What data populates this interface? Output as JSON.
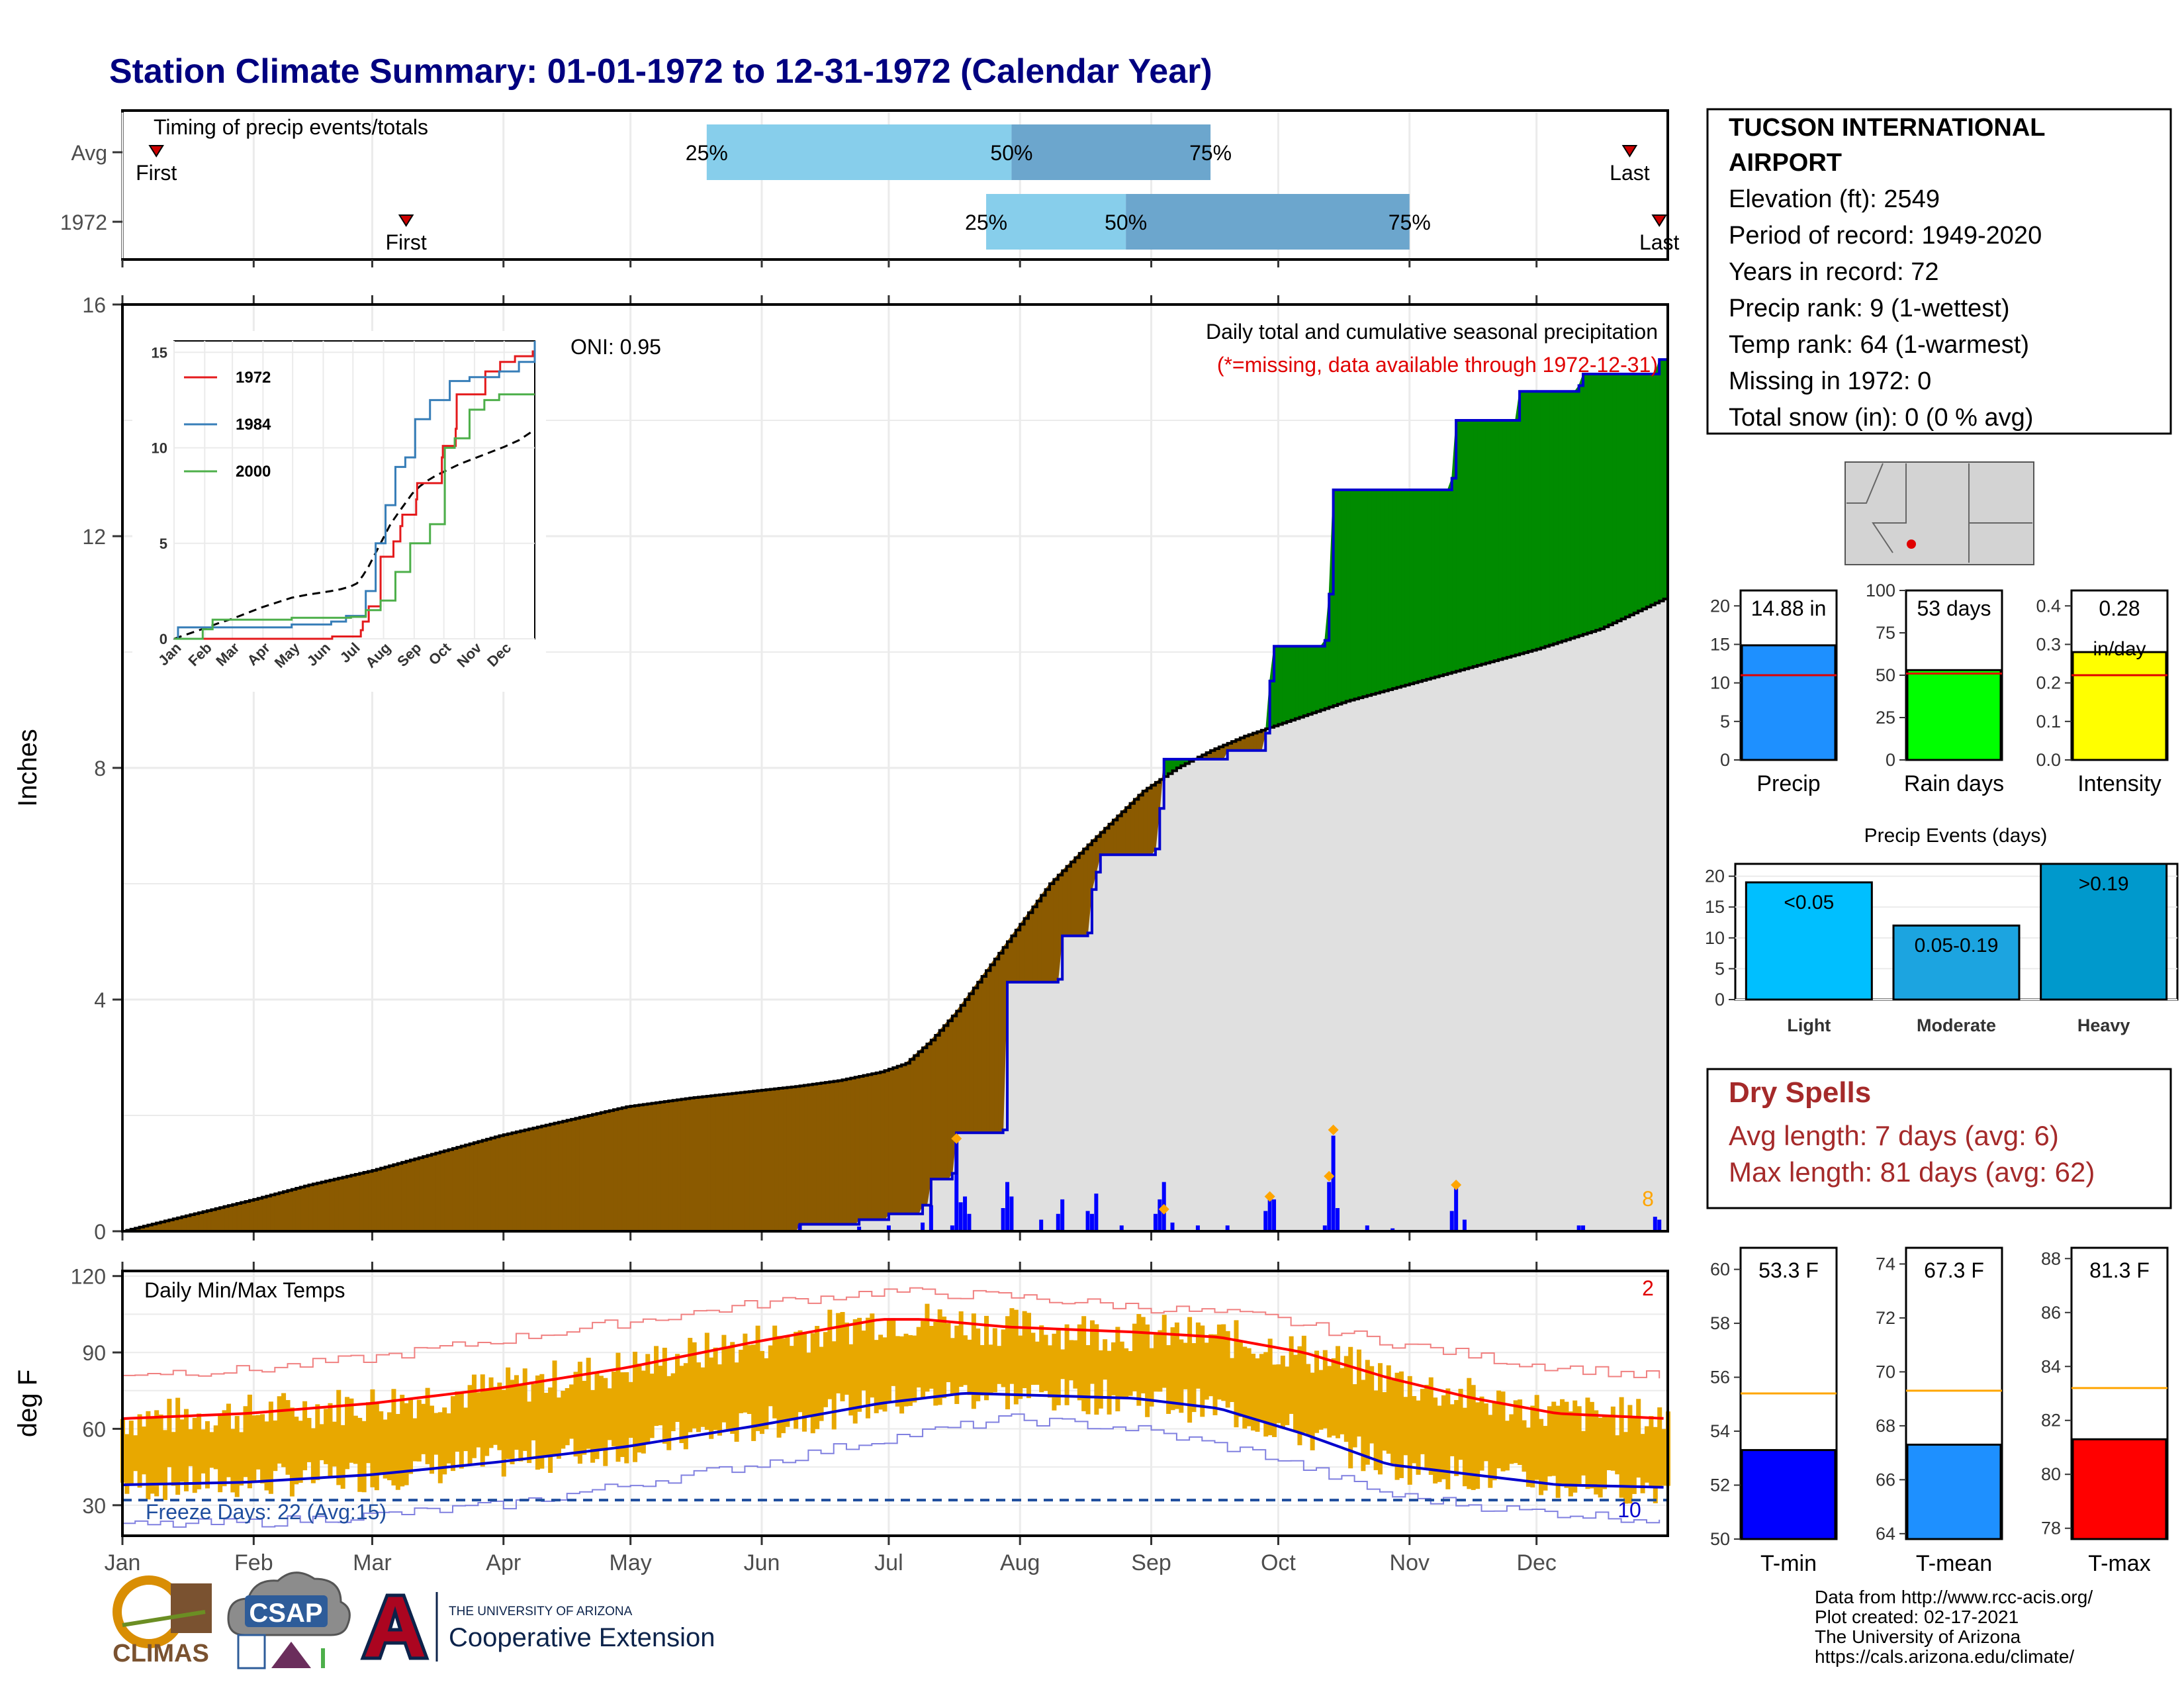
{
  "title": "Station Climate Summary: 01-01-1972 to 12-31-1972 (Calendar Year)",
  "months": [
    "Jan",
    "Feb",
    "Mar",
    "Apr",
    "May",
    "Jun",
    "Jul",
    "Aug",
    "Sep",
    "Oct",
    "Nov",
    "Dec"
  ],
  "timing": {
    "label": "Timing of precip events/totals",
    "rows": [
      {
        "label": "Avg",
        "first_label": "First",
        "first_doy": 9,
        "last_label": "Last",
        "last_doy": 357,
        "p25_label": "25%",
        "p25_doy": 139,
        "p50_label": "50%",
        "p50_doy": 211,
        "p75_label": "75%",
        "p75_doy": 258
      },
      {
        "label": "1972",
        "first_label": "First",
        "first_doy": 68,
        "last_label": "Last",
        "last_doy": 364,
        "p25_label": "25%",
        "p25_doy": 205,
        "p50_label": "50%",
        "p50_doy": 238,
        "p75_label": "75%",
        "p75_doy": 305
      }
    ],
    "colors": {
      "light": "#87CEEB",
      "dark": "#6CA6CD",
      "marker": "#CC0000"
    }
  },
  "info": {
    "station": "TUCSON INTERNATIONAL AIRPORT",
    "station_line1": "TUCSON INTERNATIONAL",
    "station_line2": "AIRPORT",
    "lines": [
      "Elevation (ft): 2549",
      "Period of record: 1949-2020",
      "Years in record: 72",
      "Precip rank: 9 (1-wettest)",
      "Temp rank: 64 (1-warmest)",
      "Missing in 1972: 0",
      "Total snow (in): 0 (0 % avg)"
    ]
  },
  "precip": {
    "ylabel": "Inches",
    "heading": "Daily total and cumulative seasonal precipitation",
    "missing_note": "(*=missing, data available through 1972-12-31)",
    "oni": "ONI: 0.95",
    "corner_count": "8",
    "yticks": [
      0,
      4,
      8,
      12,
      16
    ],
    "ylim": [
      0,
      16
    ],
    "avg_cum": [
      [
        1,
        0
      ],
      [
        15,
        0.25
      ],
      [
        32,
        0.55
      ],
      [
        45,
        0.8
      ],
      [
        60,
        1.05
      ],
      [
        75,
        1.35
      ],
      [
        90,
        1.65
      ],
      [
        105,
        1.9
      ],
      [
        120,
        2.15
      ],
      [
        135,
        2.3
      ],
      [
        150,
        2.42
      ],
      [
        160,
        2.5
      ],
      [
        170,
        2.6
      ],
      [
        180,
        2.75
      ],
      [
        186,
        2.9
      ],
      [
        192,
        3.3
      ],
      [
        198,
        3.8
      ],
      [
        205,
        4.5
      ],
      [
        213,
        5.3
      ],
      [
        220,
        6.0
      ],
      [
        228,
        6.6
      ],
      [
        235,
        7.1
      ],
      [
        242,
        7.6
      ],
      [
        250,
        8.0
      ],
      [
        258,
        8.3
      ],
      [
        266,
        8.55
      ],
      [
        274,
        8.75
      ],
      [
        282,
        8.95
      ],
      [
        290,
        9.15
      ],
      [
        305,
        9.45
      ],
      [
        320,
        9.75
      ],
      [
        335,
        10.05
      ],
      [
        350,
        10.4
      ],
      [
        366,
        10.95
      ]
    ],
    "cum_1972": [
      [
        1,
        0
      ],
      [
        160,
        0
      ],
      [
        161,
        0.12
      ],
      [
        175,
        0.2
      ],
      [
        182,
        0.3
      ],
      [
        190,
        0.45
      ],
      [
        192,
        0.9
      ],
      [
        197,
        1.0
      ],
      [
        198,
        1.7
      ],
      [
        209,
        1.75
      ],
      [
        210,
        4.3
      ],
      [
        222,
        4.35
      ],
      [
        223,
        5.1
      ],
      [
        229,
        5.15
      ],
      [
        230,
        5.9
      ],
      [
        231,
        6.2
      ],
      [
        232,
        6.5
      ],
      [
        245,
        6.6
      ],
      [
        246,
        7.3
      ],
      [
        247,
        8.15
      ],
      [
        262,
        8.3
      ],
      [
        271,
        8.6
      ],
      [
        272,
        9.5
      ],
      [
        273,
        10.1
      ],
      [
        285,
        10.2
      ],
      [
        286,
        11.0
      ],
      [
        287,
        12.8
      ],
      [
        315,
        13.0
      ],
      [
        316,
        14.0
      ],
      [
        331,
        14.5
      ],
      [
        345,
        14.6
      ],
      [
        346,
        14.8
      ],
      [
        363,
        14.8
      ],
      [
        364,
        15.05
      ],
      [
        366,
        15.05
      ]
    ],
    "daily_1972": [
      [
        161,
        0.12
      ],
      [
        175,
        0.08
      ],
      [
        182,
        0.1
      ],
      [
        190,
        0.15
      ],
      [
        192,
        0.45
      ],
      [
        197,
        0.1
      ],
      [
        198,
        1.55
      ],
      [
        199,
        0.5
      ],
      [
        200,
        0.6
      ],
      [
        201,
        0.3
      ],
      [
        209,
        0.4
      ],
      [
        210,
        0.85
      ],
      [
        211,
        0.6
      ],
      [
        218,
        0.2
      ],
      [
        222,
        0.3
      ],
      [
        223,
        0.55
      ],
      [
        229,
        0.35
      ],
      [
        230,
        0.3
      ],
      [
        231,
        0.65
      ],
      [
        237,
        0.1
      ],
      [
        245,
        0.3
      ],
      [
        246,
        0.55
      ],
      [
        247,
        0.85
      ],
      [
        249,
        0.15
      ],
      [
        255,
        0.1
      ],
      [
        262,
        0.1
      ],
      [
        271,
        0.35
      ],
      [
        272,
        0.6
      ],
      [
        273,
        0.55
      ],
      [
        285,
        0.1
      ],
      [
        286,
        0.85
      ],
      [
        287,
        1.65
      ],
      [
        288,
        0.4
      ],
      [
        295,
        0.1
      ],
      [
        301,
        0.05
      ],
      [
        315,
        0.35
      ],
      [
        316,
        0.8
      ],
      [
        318,
        0.2
      ],
      [
        345,
        0.1
      ],
      [
        346,
        0.1
      ],
      [
        363,
        0.25
      ],
      [
        364,
        0.2
      ]
    ],
    "orange_marks": [
      [
        198,
        1.6
      ],
      [
        247,
        0.38
      ],
      [
        272,
        0.6
      ],
      [
        286,
        0.95
      ],
      [
        287,
        1.75
      ],
      [
        316,
        0.8
      ]
    ],
    "colors": {
      "above": "#008B00",
      "below": "#8B5A00",
      "avg_fill": "#E0E0E0",
      "cum_line": "#0000CD",
      "daily": "#0000FF"
    }
  },
  "inset": {
    "yticks": [
      0,
      5,
      10,
      15
    ],
    "series": [
      {
        "name": "1972",
        "color": "#E41A1C",
        "points": [
          [
            1,
            0
          ],
          [
            160,
            0
          ],
          [
            161,
            0.12
          ],
          [
            190,
            0.45
          ],
          [
            192,
            0.9
          ],
          [
            198,
            1.7
          ],
          [
            210,
            4.3
          ],
          [
            223,
            5.1
          ],
          [
            230,
            5.9
          ],
          [
            232,
            6.5
          ],
          [
            246,
            7.3
          ],
          [
            247,
            8.15
          ],
          [
            272,
            9.5
          ],
          [
            273,
            10.1
          ],
          [
            286,
            11.0
          ],
          [
            287,
            12.8
          ],
          [
            316,
            14.0
          ],
          [
            331,
            14.5
          ],
          [
            346,
            14.8
          ],
          [
            364,
            15.05
          ],
          [
            366,
            15.05
          ]
        ]
      },
      {
        "name": "1984",
        "color": "#377EB8",
        "points": [
          [
            1,
            0
          ],
          [
            5,
            0.6
          ],
          [
            60,
            0.6
          ],
          [
            120,
            0.75
          ],
          [
            160,
            0.9
          ],
          [
            175,
            1.2
          ],
          [
            195,
            2.5
          ],
          [
            205,
            5.0
          ],
          [
            215,
            7.0
          ],
          [
            225,
            9.0
          ],
          [
            235,
            9.5
          ],
          [
            245,
            11.5
          ],
          [
            260,
            12.5
          ],
          [
            280,
            13.5
          ],
          [
            300,
            13.7
          ],
          [
            330,
            14.0
          ],
          [
            350,
            14.5
          ],
          [
            366,
            15.6
          ]
        ]
      },
      {
        "name": "2000",
        "color": "#4DAF4A",
        "points": [
          [
            1,
            0
          ],
          [
            30,
            0.5
          ],
          [
            40,
            1.0
          ],
          [
            120,
            1.1
          ],
          [
            180,
            1.15
          ],
          [
            195,
            1.5
          ],
          [
            210,
            2.0
          ],
          [
            225,
            3.5
          ],
          [
            240,
            5.0
          ],
          [
            260,
            6.0
          ],
          [
            275,
            10.0
          ],
          [
            285,
            10.5
          ],
          [
            300,
            12.0
          ],
          [
            315,
            12.5
          ],
          [
            330,
            12.8
          ],
          [
            366,
            12.8
          ]
        ]
      }
    ],
    "avg_color": "#000000"
  },
  "bars_precip": {
    "label": "Precip",
    "value_text": "14.88 in",
    "value": 14.88,
    "avg": 11.0,
    "yticks": [
      0,
      5,
      10,
      15,
      20
    ],
    "ymax": 22,
    "color": "#1E90FF"
  },
  "bars_days": {
    "label": "Rain days",
    "value_text": "53 days",
    "value": 53,
    "avg": 51,
    "yticks": [
      0,
      25,
      50,
      75,
      100
    ],
    "ymax": 100,
    "color": "#00FF00"
  },
  "bars_intensity": {
    "label": "Intensity",
    "value_text": "0.28",
    "unit_text": "in/day",
    "value": 0.28,
    "avg": 0.22,
    "yticks": [
      0.0,
      0.1,
      0.2,
      0.3,
      0.4
    ],
    "ymax": 0.44,
    "color": "#FFFF00"
  },
  "events": {
    "title": "Precip Events (days)",
    "yticks": [
      0,
      5,
      10,
      15,
      20
    ],
    "ymax": 22,
    "categories": [
      "Light",
      "Moderate",
      "Heavy"
    ],
    "bin_labels": [
      "<0.05",
      "0.05-0.19",
      ">0.19"
    ],
    "values": [
      19,
      12,
      22
    ],
    "colors": [
      "#00BFFF",
      "#1CA4E0",
      "#0099CC"
    ]
  },
  "dry": {
    "title": "Dry Spells",
    "avg_line": "Avg length: 7 days (avg: 6)",
    "max_line": "Max length: 81 days (avg: 62)",
    "color": "#A52A2A"
  },
  "temps": {
    "title": "Daily Min/Max Temps",
    "ylabel": "deg F",
    "yticks": [
      30,
      60,
      90,
      120
    ],
    "ylim": [
      18,
      122
    ],
    "freeze_label": "Freeze Days: 22 (Avg:15)",
    "freeze_temp": 32,
    "corner_hot": "2",
    "corner_cold": "10",
    "tmax_avg": [
      [
        1,
        64
      ],
      [
        30,
        66
      ],
      [
        60,
        70
      ],
      [
        90,
        76
      ],
      [
        120,
        84
      ],
      [
        150,
        94
      ],
      [
        180,
        103
      ],
      [
        190,
        103
      ],
      [
        210,
        100
      ],
      [
        240,
        98
      ],
      [
        260,
        96
      ],
      [
        280,
        90
      ],
      [
        300,
        80
      ],
      [
        320,
        72
      ],
      [
        340,
        66
      ],
      [
        366,
        64
      ]
    ],
    "tmin_avg": [
      [
        1,
        38
      ],
      [
        30,
        39
      ],
      [
        60,
        42
      ],
      [
        90,
        47
      ],
      [
        120,
        53
      ],
      [
        150,
        61
      ],
      [
        180,
        70
      ],
      [
        200,
        74
      ],
      [
        220,
        73
      ],
      [
        240,
        72
      ],
      [
        260,
        68
      ],
      [
        280,
        58
      ],
      [
        300,
        46
      ],
      [
        320,
        42
      ],
      [
        340,
        38
      ],
      [
        366,
        37
      ]
    ],
    "tmax_rec": [
      [
        1,
        82
      ],
      [
        30,
        83
      ],
      [
        60,
        88
      ],
      [
        90,
        95
      ],
      [
        120,
        102
      ],
      [
        150,
        109
      ],
      [
        180,
        114
      ],
      [
        210,
        112
      ],
      [
        240,
        108
      ],
      [
        270,
        104
      ],
      [
        300,
        94
      ],
      [
        330,
        86
      ],
      [
        366,
        80
      ]
    ],
    "tmin_rec": [
      [
        1,
        22
      ],
      [
        30,
        23
      ],
      [
        60,
        26
      ],
      [
        90,
        30
      ],
      [
        120,
        38
      ],
      [
        150,
        46
      ],
      [
        180,
        56
      ],
      [
        210,
        64
      ],
      [
        240,
        60
      ],
      [
        270,
        50
      ],
      [
        300,
        34
      ],
      [
        330,
        28
      ],
      [
        366,
        24
      ]
    ],
    "colors": {
      "range": "#E8A800",
      "avg_max": "#FF0000",
      "avg_min": "#0000CD",
      "rec_max": "#F08080",
      "rec_min": "#8080E0",
      "freeze": "#1F4E9E"
    }
  },
  "tbars": [
    {
      "label": "T-min",
      "value_text": "53.3 F",
      "value": 53.3,
      "avg": 55.4,
      "yticks": [
        50,
        52,
        54,
        56,
        58,
        60
      ],
      "ylim": [
        50,
        60.8
      ],
      "color": "#0000FF"
    },
    {
      "label": "T-mean",
      "value_text": "67.3 F",
      "value": 67.3,
      "avg": 69.3,
      "yticks": [
        64,
        66,
        68,
        70,
        72,
        74
      ],
      "ylim": [
        63.8,
        74.6
      ],
      "color": "#1E90FF"
    },
    {
      "label": "T-max",
      "value_text": "81.3 F",
      "value": 81.3,
      "avg": 83.2,
      "yticks": [
        78,
        80,
        82,
        84,
        86,
        88
      ],
      "ylim": [
        77.6,
        88.4
      ],
      "color": "#FF0000"
    }
  ],
  "footer": {
    "lines": [
      "Data from http://www.rcc-acis.org/",
      "Plot created: 02-17-2021",
      "The University of Arizona",
      "https://cals.arizona.edu/climate/"
    ],
    "logo_climas": "CLIMAS",
    "logo_csap": "CSAP",
    "logo_ua_small": "THE UNIVERSITY OF ARIZONA",
    "logo_ua_big": "Cooperative Extension"
  }
}
